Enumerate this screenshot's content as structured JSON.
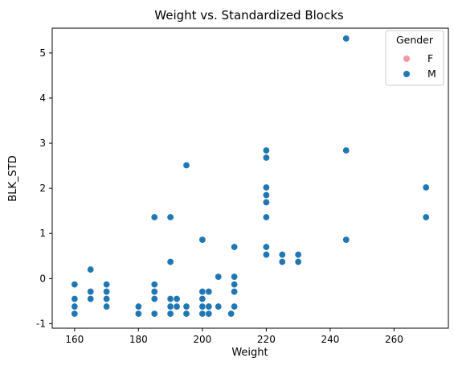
{
  "chart_data": {
    "type": "scatter",
    "title": "Weight vs. Standardized Blocks",
    "xlabel": "Weight",
    "ylabel": "BLK_STD",
    "xlim": [
      153,
      277
    ],
    "ylim": [
      -1.1,
      5.55
    ],
    "xticks": [
      160,
      180,
      200,
      220,
      240,
      260
    ],
    "yticks": [
      -1,
      0,
      1,
      2,
      3,
      4,
      5
    ],
    "grid": false,
    "legend": {
      "title": "Gender",
      "placement": "top-right",
      "entries": [
        {
          "label": "F",
          "color": "#f299a5"
        },
        {
          "label": "M",
          "color": "#1f77b4"
        }
      ]
    },
    "series": [
      {
        "name": "F",
        "color": "#f299a5",
        "points": []
      },
      {
        "name": "M",
        "color": "#1f77b4",
        "points": [
          [
            160,
            -0.13
          ],
          [
            160,
            -0.45
          ],
          [
            160,
            -0.62
          ],
          [
            160,
            -0.78
          ],
          [
            165,
            0.2
          ],
          [
            165,
            -0.29
          ],
          [
            165,
            -0.45
          ],
          [
            170,
            -0.13
          ],
          [
            170,
            -0.29
          ],
          [
            170,
            -0.45
          ],
          [
            170,
            -0.62
          ],
          [
            180,
            -0.62
          ],
          [
            180,
            -0.78
          ],
          [
            185,
            1.36
          ],
          [
            185,
            -0.13
          ],
          [
            185,
            -0.29
          ],
          [
            185,
            -0.45
          ],
          [
            185,
            -0.78
          ],
          [
            190,
            1.36
          ],
          [
            190,
            0.37
          ],
          [
            190,
            -0.45
          ],
          [
            190,
            -0.62
          ],
          [
            190,
            -0.78
          ],
          [
            192,
            -0.45
          ],
          [
            192,
            -0.62
          ],
          [
            195,
            2.51
          ],
          [
            195,
            -0.62
          ],
          [
            195,
            -0.78
          ],
          [
            200,
            0.86
          ],
          [
            200,
            -0.29
          ],
          [
            200,
            -0.45
          ],
          [
            200,
            -0.62
          ],
          [
            200,
            -0.78
          ],
          [
            202,
            -0.29
          ],
          [
            202,
            -0.62
          ],
          [
            202,
            -0.78
          ],
          [
            205,
            0.04
          ],
          [
            205,
            -0.62
          ],
          [
            209,
            -0.78
          ],
          [
            210,
            0.7
          ],
          [
            210,
            0.04
          ],
          [
            210,
            -0.13
          ],
          [
            210,
            -0.29
          ],
          [
            210,
            -0.62
          ],
          [
            220,
            2.84
          ],
          [
            220,
            2.68
          ],
          [
            220,
            2.02
          ],
          [
            220,
            1.85
          ],
          [
            220,
            1.69
          ],
          [
            220,
            1.36
          ],
          [
            220,
            0.7
          ],
          [
            220,
            0.53
          ],
          [
            225,
            0.53
          ],
          [
            225,
            0.37
          ],
          [
            230,
            0.53
          ],
          [
            230,
            0.37
          ],
          [
            245,
            5.32
          ],
          [
            245,
            2.84
          ],
          [
            245,
            0.86
          ],
          [
            270,
            2.02
          ],
          [
            270,
            1.36
          ]
        ]
      }
    ]
  }
}
